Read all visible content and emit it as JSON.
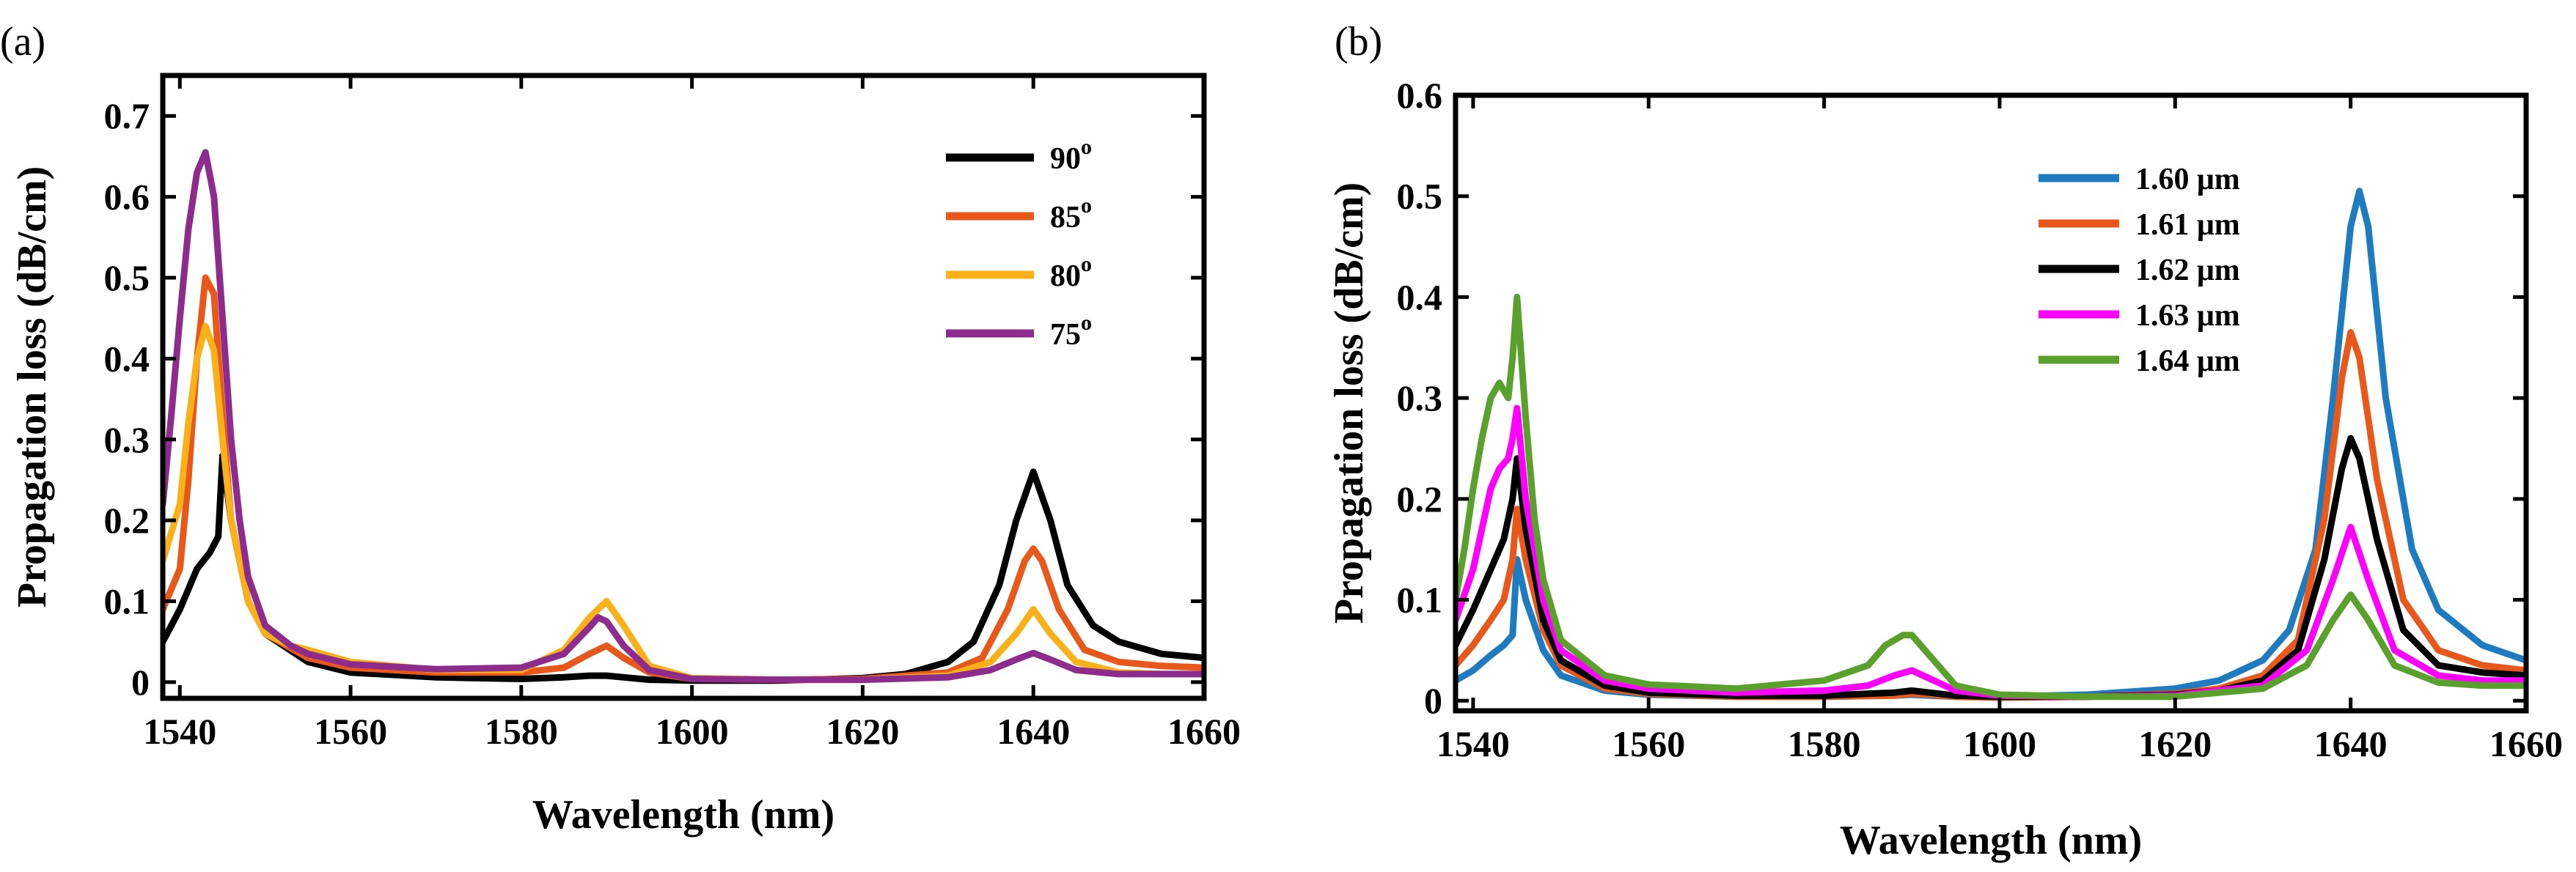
{
  "chart_data": [
    {
      "type": "line",
      "panel_label": "(a)",
      "xlabel": "Wavelength (nm)",
      "ylabel": "Propagation loss (dB/cm)",
      "xlim": [
        1538,
        1660
      ],
      "ylim": [
        -0.02,
        0.75
      ],
      "xticks": [
        1540,
        1560,
        1580,
        1600,
        1620,
        1640,
        1660
      ],
      "yticks": [
        0,
        0.1,
        0.2,
        0.3,
        0.4,
        0.5,
        0.6,
        0.7
      ],
      "ytick_labels": [
        "0",
        "0.1",
        "0.2",
        "0.3",
        "0.4",
        "0.5",
        "0.6",
        "0.7"
      ],
      "legend_position": "top-right",
      "series": [
        {
          "name": "90",
          "superscript": "o",
          "color": "#000000",
          "x": [
            1538,
            1540,
            1542,
            1543.5,
            1544.5,
            1545,
            1546,
            1548,
            1550,
            1555,
            1560,
            1570,
            1580,
            1585,
            1588,
            1590,
            1592,
            1595,
            1600,
            1610,
            1620,
            1625,
            1630,
            1633,
            1636,
            1638,
            1640,
            1642,
            1644,
            1647,
            1650,
            1655,
            1660
          ],
          "y": [
            0.05,
            0.09,
            0.14,
            0.16,
            0.18,
            0.28,
            0.2,
            0.1,
            0.06,
            0.025,
            0.012,
            0.006,
            0.004,
            0.006,
            0.008,
            0.008,
            0.006,
            0.003,
            0.002,
            0.002,
            0.005,
            0.01,
            0.025,
            0.05,
            0.12,
            0.2,
            0.26,
            0.2,
            0.12,
            0.07,
            0.05,
            0.035,
            0.03
          ]
        },
        {
          "name": "85",
          "superscript": "o",
          "color": "#E8581A",
          "x": [
            1538,
            1540,
            1541,
            1542,
            1543,
            1544,
            1545,
            1546,
            1548,
            1550,
            1555,
            1560,
            1570,
            1580,
            1585,
            1588,
            1590,
            1592,
            1595,
            1600,
            1610,
            1620,
            1630,
            1634,
            1637,
            1639,
            1640,
            1641,
            1643,
            1646,
            1650,
            1655,
            1660
          ],
          "y": [
            0.09,
            0.14,
            0.25,
            0.4,
            0.5,
            0.48,
            0.33,
            0.2,
            0.1,
            0.06,
            0.03,
            0.018,
            0.012,
            0.012,
            0.018,
            0.035,
            0.045,
            0.03,
            0.012,
            0.004,
            0.003,
            0.004,
            0.012,
            0.03,
            0.09,
            0.15,
            0.165,
            0.15,
            0.09,
            0.04,
            0.025,
            0.02,
            0.018
          ]
        },
        {
          "name": "80",
          "superscript": "o",
          "color": "#F9B019",
          "x": [
            1538,
            1540,
            1541,
            1542,
            1543,
            1544,
            1545,
            1546,
            1548,
            1550,
            1553,
            1555,
            1560,
            1570,
            1580,
            1585,
            1588,
            1590,
            1592,
            1595,
            1600,
            1610,
            1620,
            1630,
            1635,
            1638,
            1640,
            1642,
            1645,
            1650,
            1655,
            1660
          ],
          "y": [
            0.15,
            0.22,
            0.32,
            0.4,
            0.44,
            0.41,
            0.3,
            0.2,
            0.1,
            0.06,
            0.045,
            0.04,
            0.025,
            0.015,
            0.015,
            0.04,
            0.08,
            0.1,
            0.07,
            0.02,
            0.005,
            0.003,
            0.003,
            0.008,
            0.025,
            0.06,
            0.09,
            0.06,
            0.025,
            0.012,
            0.01,
            0.01
          ]
        },
        {
          "name": "75",
          "superscript": "o",
          "color": "#8E2C8E",
          "x": [
            1538,
            1539,
            1540,
            1541,
            1542,
            1543,
            1544,
            1545,
            1546,
            1547,
            1548,
            1550,
            1553,
            1555,
            1560,
            1570,
            1580,
            1585,
            1588,
            1589,
            1590,
            1592,
            1595,
            1600,
            1610,
            1620,
            1630,
            1635,
            1638,
            1640,
            1642,
            1645,
            1650,
            1655,
            1660
          ],
          "y": [
            0.22,
            0.33,
            0.45,
            0.56,
            0.63,
            0.655,
            0.6,
            0.45,
            0.3,
            0.2,
            0.13,
            0.07,
            0.045,
            0.035,
            0.022,
            0.016,
            0.018,
            0.035,
            0.068,
            0.08,
            0.075,
            0.045,
            0.015,
            0.004,
            0.003,
            0.003,
            0.006,
            0.015,
            0.028,
            0.036,
            0.028,
            0.015,
            0.01,
            0.01,
            0.01
          ]
        }
      ]
    },
    {
      "type": "line",
      "panel_label": "(b)",
      "xlabel": "Wavelength (nm)",
      "ylabel": "Propagation loss (dB/cm)",
      "xlim": [
        1538,
        1660
      ],
      "ylim": [
        -0.01,
        0.6
      ],
      "xticks": [
        1540,
        1560,
        1580,
        1600,
        1620,
        1640,
        1660
      ],
      "yticks": [
        0,
        0.1,
        0.2,
        0.3,
        0.4,
        0.5,
        0.6
      ],
      "ytick_labels": [
        "0",
        "0.1",
        "0.2",
        "0.3",
        "0.4",
        "0.5",
        "0.6"
      ],
      "legend_position": "top-right",
      "series": [
        {
          "name": "1.60 μm",
          "color": "#1F7BC0",
          "x": [
            1538,
            1540,
            1542,
            1543.5,
            1544.5,
            1545,
            1546,
            1548,
            1550,
            1555,
            1560,
            1570,
            1580,
            1588,
            1590,
            1592,
            1595,
            1600,
            1610,
            1620,
            1625,
            1630,
            1633,
            1636,
            1638,
            1640,
            1641,
            1642,
            1644,
            1647,
            1650,
            1655,
            1660
          ],
          "y": [
            0.02,
            0.03,
            0.045,
            0.055,
            0.065,
            0.14,
            0.1,
            0.05,
            0.025,
            0.01,
            0.006,
            0.004,
            0.004,
            0.005,
            0.006,
            0.005,
            0.004,
            0.004,
            0.006,
            0.012,
            0.02,
            0.04,
            0.07,
            0.15,
            0.3,
            0.47,
            0.505,
            0.47,
            0.3,
            0.15,
            0.09,
            0.055,
            0.04
          ]
        },
        {
          "name": "1.61 μm",
          "color": "#E8581A",
          "x": [
            1538,
            1540,
            1542,
            1543.5,
            1544.5,
            1545,
            1546,
            1548,
            1550,
            1555,
            1560,
            1570,
            1580,
            1588,
            1590,
            1592,
            1595,
            1600,
            1610,
            1620,
            1625,
            1630,
            1634,
            1637,
            1639,
            1640,
            1641,
            1643,
            1646,
            1650,
            1655,
            1660
          ],
          "y": [
            0.035,
            0.055,
            0.08,
            0.1,
            0.14,
            0.19,
            0.14,
            0.07,
            0.035,
            0.012,
            0.007,
            0.004,
            0.004,
            0.005,
            0.007,
            0.006,
            0.004,
            0.003,
            0.004,
            0.007,
            0.012,
            0.025,
            0.06,
            0.18,
            0.32,
            0.365,
            0.34,
            0.22,
            0.1,
            0.05,
            0.035,
            0.03
          ]
        },
        {
          "name": "1.62 μm",
          "color": "#000000",
          "x": [
            1538,
            1540,
            1542,
            1543.5,
            1544.5,
            1545,
            1546,
            1548,
            1550,
            1555,
            1560,
            1570,
            1580,
            1588,
            1590,
            1592,
            1595,
            1600,
            1610,
            1620,
            1625,
            1630,
            1634,
            1637,
            1639,
            1640,
            1641,
            1643,
            1646,
            1650,
            1655,
            1660
          ],
          "y": [
            0.055,
            0.09,
            0.13,
            0.16,
            0.2,
            0.24,
            0.17,
            0.08,
            0.04,
            0.015,
            0.008,
            0.005,
            0.005,
            0.008,
            0.01,
            0.008,
            0.005,
            0.004,
            0.004,
            0.006,
            0.01,
            0.02,
            0.05,
            0.14,
            0.23,
            0.26,
            0.24,
            0.16,
            0.07,
            0.035,
            0.028,
            0.025
          ]
        },
        {
          "name": "1.63 μm",
          "color": "#FF00FF",
          "x": [
            1538,
            1540,
            1541,
            1542,
            1543,
            1544,
            1544.5,
            1545,
            1546,
            1548,
            1550,
            1555,
            1560,
            1570,
            1580,
            1585,
            1588,
            1590,
            1592,
            1595,
            1600,
            1610,
            1620,
            1630,
            1635,
            1638,
            1640,
            1642,
            1645,
            1650,
            1655,
            1660
          ],
          "y": [
            0.08,
            0.13,
            0.17,
            0.21,
            0.23,
            0.24,
            0.26,
            0.29,
            0.2,
            0.1,
            0.05,
            0.02,
            0.012,
            0.008,
            0.01,
            0.015,
            0.025,
            0.03,
            0.022,
            0.01,
            0.005,
            0.004,
            0.005,
            0.015,
            0.05,
            0.12,
            0.172,
            0.12,
            0.05,
            0.025,
            0.02,
            0.02
          ]
        },
        {
          "name": "1.64 μm",
          "color": "#5AA02C",
          "x": [
            1538,
            1539,
            1540,
            1541,
            1542,
            1543,
            1544,
            1544.5,
            1545,
            1546,
            1547,
            1548,
            1550,
            1555,
            1560,
            1570,
            1580,
            1585,
            1587,
            1589,
            1590,
            1592,
            1595,
            1600,
            1610,
            1620,
            1630,
            1635,
            1638,
            1640,
            1642,
            1645,
            1650,
            1655,
            1660
          ],
          "y": [
            0.1,
            0.15,
            0.21,
            0.26,
            0.3,
            0.315,
            0.3,
            0.34,
            0.4,
            0.28,
            0.18,
            0.12,
            0.06,
            0.025,
            0.016,
            0.012,
            0.02,
            0.035,
            0.055,
            0.065,
            0.065,
            0.045,
            0.015,
            0.006,
            0.004,
            0.004,
            0.012,
            0.035,
            0.08,
            0.105,
            0.08,
            0.035,
            0.018,
            0.015,
            0.015
          ]
        }
      ]
    }
  ]
}
